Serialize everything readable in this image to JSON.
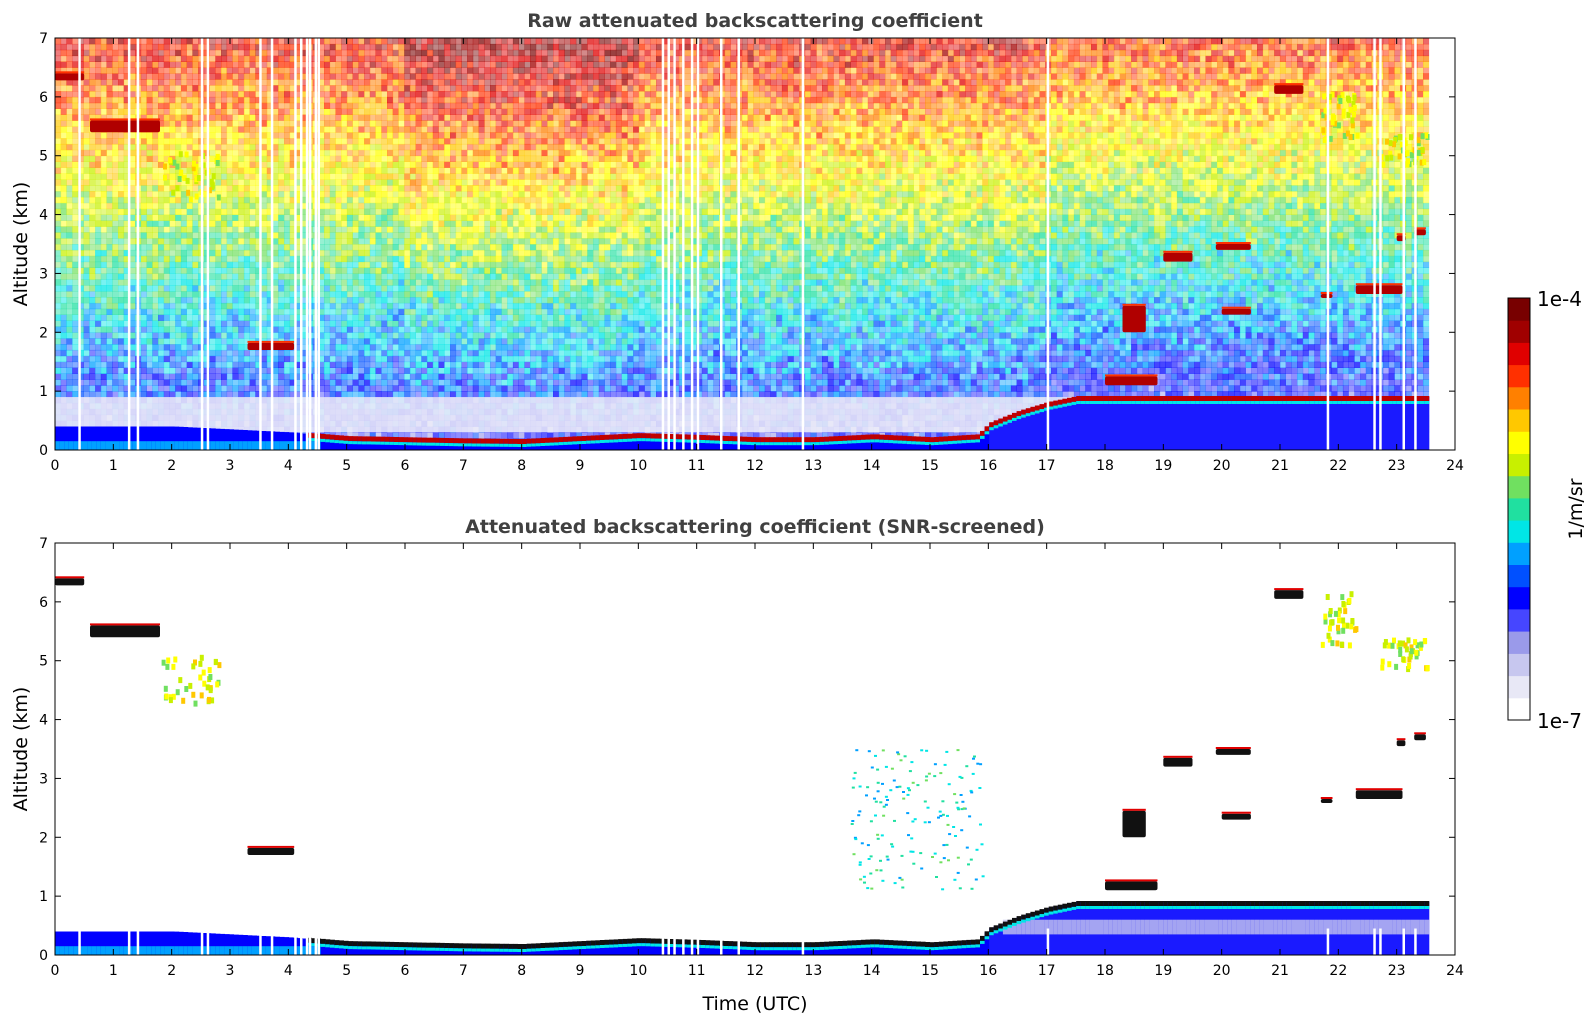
{
  "chart_data": [
    {
      "type": "heatmap",
      "title": "Raw attenuated backscattering coefficient",
      "xlabel": "",
      "ylabel": "Altitude (km)",
      "xlim": [
        0,
        24
      ],
      "ylim": [
        0,
        7
      ],
      "xticks": [
        "0",
        "1",
        "2",
        "3",
        "4",
        "5",
        "6",
        "7",
        "8",
        "9",
        "10",
        "11",
        "12",
        "13",
        "14",
        "15",
        "16",
        "17",
        "18",
        "19",
        "20",
        "21",
        "22",
        "23",
        "24"
      ],
      "yticks": [
        "0",
        "1",
        "2",
        "3",
        "4",
        "5",
        "6",
        "7"
      ],
      "data_end_hour": 23.55,
      "background_noise": "random speckle increasing with altitude (blue near ground to yellow/red aloft)",
      "gaps_hours": [
        0.4,
        1.25,
        1.4,
        2.5,
        2.6,
        3.5,
        3.7,
        4.1,
        4.2,
        4.3,
        4.35,
        4.45,
        4.5,
        10.4,
        10.5,
        10.6,
        10.75,
        10.9,
        11.0,
        11.4,
        11.7,
        12.8,
        17.0,
        21.8,
        22.6,
        22.7,
        23.1,
        23.3
      ],
      "boundary_layer_top_km": [
        {
          "t": 0,
          "h": 0.4
        },
        {
          "t": 2,
          "h": 0.4
        },
        {
          "t": 4,
          "h": 0.3
        },
        {
          "t": 5,
          "h": 0.22
        },
        {
          "t": 7,
          "h": 0.18
        },
        {
          "t": 8,
          "h": 0.17
        },
        {
          "t": 9,
          "h": 0.22
        },
        {
          "t": 10,
          "h": 0.27
        },
        {
          "t": 11,
          "h": 0.24
        },
        {
          "t": 12,
          "h": 0.2
        },
        {
          "t": 13,
          "h": 0.2
        },
        {
          "t": 14,
          "h": 0.25
        },
        {
          "t": 15,
          "h": 0.2
        },
        {
          "t": 15.8,
          "h": 0.25
        },
        {
          "t": 16,
          "h": 0.45
        },
        {
          "t": 16.5,
          "h": 0.65
        },
        {
          "t": 17,
          "h": 0.8
        },
        {
          "t": 17.5,
          "h": 0.9
        }
      ],
      "cloud_layers": [
        {
          "t0": 0.0,
          "t1": 0.5,
          "h0": 6.28,
          "h1": 6.4
        },
        {
          "t0": 0.6,
          "t1": 1.8,
          "h0": 5.4,
          "h1": 5.6
        },
        {
          "t0": 3.3,
          "t1": 4.1,
          "h0": 1.7,
          "h1": 1.82
        },
        {
          "t0": 18.0,
          "t1": 18.9,
          "h0": 1.1,
          "h1": 1.25
        },
        {
          "t0": 18.3,
          "t1": 18.7,
          "h0": 2.0,
          "h1": 2.45
        },
        {
          "t0": 19.0,
          "t1": 19.5,
          "h0": 3.2,
          "h1": 3.35
        },
        {
          "t0": 19.9,
          "t1": 20.5,
          "h0": 3.4,
          "h1": 3.5
        },
        {
          "t0": 20.0,
          "t1": 20.5,
          "h0": 2.3,
          "h1": 2.4
        },
        {
          "t0": 20.9,
          "t1": 21.4,
          "h0": 6.05,
          "h1": 6.2
        },
        {
          "t0": 21.7,
          "t1": 21.9,
          "h0": 2.6,
          "h1": 2.65
        },
        {
          "t0": 22.3,
          "t1": 23.1,
          "h0": 2.65,
          "h1": 2.8
        },
        {
          "t0": 23.0,
          "t1": 23.15,
          "h0": 3.55,
          "h1": 3.65
        },
        {
          "t0": 23.3,
          "t1": 23.5,
          "h0": 3.65,
          "h1": 3.75
        }
      ],
      "thin_layers": [
        {
          "t0": 1.8,
          "t1": 2.8,
          "h0": 4.3,
          "h1": 5.1
        },
        {
          "t0": 21.7,
          "t1": 22.3,
          "h0": 5.3,
          "h1": 6.2
        },
        {
          "t0": 22.7,
          "t1": 23.5,
          "h0": 4.9,
          "h1": 5.4
        }
      ]
    },
    {
      "type": "heatmap",
      "title": "Attenuated backscattering coefficient (SNR-screened)",
      "xlabel": "Time (UTC)",
      "ylabel": "Altitude (km)",
      "xlim": [
        0,
        24
      ],
      "ylim": [
        0,
        7
      ],
      "xticks": [
        "0",
        "1",
        "2",
        "3",
        "4",
        "5",
        "6",
        "7",
        "8",
        "9",
        "10",
        "11",
        "12",
        "13",
        "14",
        "15",
        "16",
        "17",
        "18",
        "19",
        "20",
        "21",
        "22",
        "23",
        "24"
      ],
      "yticks": [
        "0",
        "1",
        "2",
        "3",
        "4",
        "5",
        "6",
        "7"
      ],
      "data_end_hour": 23.55,
      "background_noise": "screened out (white) except aerosol layers and clouds",
      "scatter_region": {
        "t0": 13.6,
        "t1": 15.9,
        "h0": 1.1,
        "h1": 3.5
      }
    }
  ],
  "colorbar": {
    "label": "1/m/sr",
    "min_label": "1e-7",
    "max_label": "1e-4",
    "scale": "log",
    "colormap": [
      "#ffffff",
      "#e8e8f6",
      "#c7c7ef",
      "#9a9aea",
      "#4646ff",
      "#0000ff",
      "#0050ff",
      "#00a0ff",
      "#00e6e6",
      "#20e0a0",
      "#70e060",
      "#c8f000",
      "#ffff00",
      "#ffc800",
      "#ff8000",
      "#ff3000",
      "#e00000",
      "#a00000",
      "#780000"
    ]
  }
}
